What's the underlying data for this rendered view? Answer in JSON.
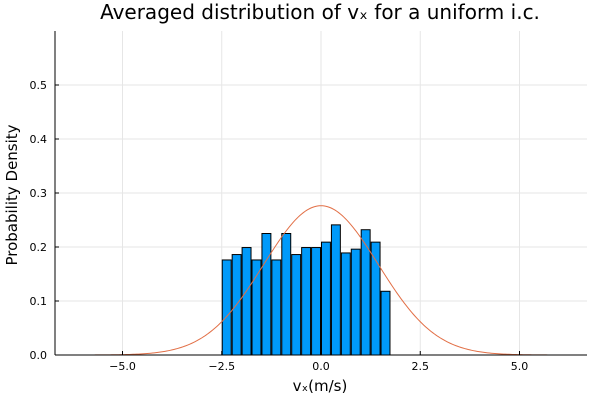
{
  "chart_data": {
    "type": "bar",
    "title": "Averaged distribution of vₓ for a uniform i.c.",
    "xlabel": "vₓ(m/s)",
    "ylabel": "Probability Density",
    "xlim": [
      -6.7,
      6.7
    ],
    "ylim": [
      0,
      0.6
    ],
    "xticks": [
      -5.0,
      -2.5,
      0.0,
      2.5,
      5.0
    ],
    "xtick_labels": [
      "−5.0",
      "−2.5",
      "0.0",
      "2.5",
      "5.0"
    ],
    "yticks": [
      0.0,
      0.1,
      0.2,
      0.3,
      0.4,
      0.5
    ],
    "ytick_labels": [
      "0.0",
      "0.1",
      "0.2",
      "0.3",
      "0.4",
      "0.5"
    ],
    "grid": true,
    "legend": false,
    "bar_color": "#009AFA",
    "curve_color": "#E26F46",
    "bin_width": 0.25,
    "bins": [
      {
        "x": -2.5,
        "value": 0.176
      },
      {
        "x": -2.25,
        "value": 0.186
      },
      {
        "x": -2.0,
        "value": 0.199
      },
      {
        "x": -1.75,
        "value": 0.176
      },
      {
        "x": -1.5,
        "value": 0.225
      },
      {
        "x": -1.25,
        "value": 0.176
      },
      {
        "x": -1.0,
        "value": 0.225
      },
      {
        "x": -0.75,
        "value": 0.186
      },
      {
        "x": -0.5,
        "value": 0.199
      },
      {
        "x": -0.25,
        "value": 0.199
      },
      {
        "x": 0.0,
        "value": 0.209
      },
      {
        "x": 0.25,
        "value": 0.241
      },
      {
        "x": 0.5,
        "value": 0.189
      },
      {
        "x": 0.75,
        "value": 0.196
      },
      {
        "x": 1.0,
        "value": 0.232
      },
      {
        "x": 1.25,
        "value": 0.209
      },
      {
        "x": 1.5,
        "value": 0.118
      }
    ],
    "curve": {
      "type": "gaussian",
      "mean": 0.0,
      "std": 1.443
    }
  }
}
